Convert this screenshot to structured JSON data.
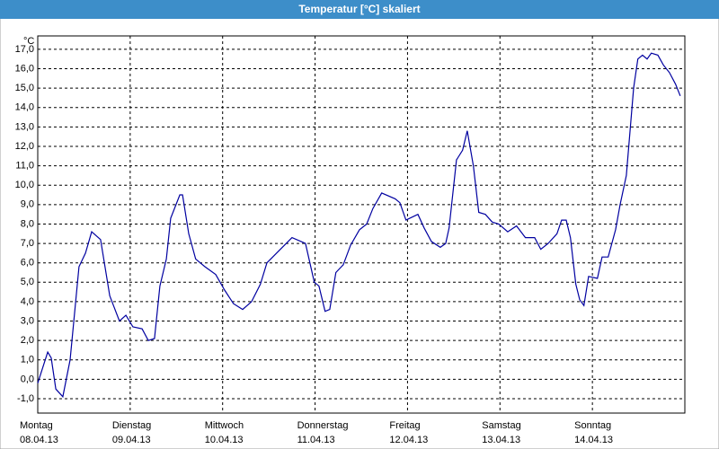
{
  "chart_data": {
    "type": "line",
    "title": "Temperatur [°C] skaliert",
    "ylabel": "°C",
    "x": [
      0,
      2.6,
      3.5,
      4.7,
      6.5,
      8.4,
      10.7,
      12.4,
      14.0,
      16.3,
      18.7,
      21.2,
      22.9,
      24.7,
      27.1,
      28.7,
      30.3,
      31.7,
      33.4,
      34.5,
      36.9,
      37.6,
      39.2,
      41.0,
      43.4,
      46.2,
      48.5,
      50.8,
      53.2,
      55.5,
      57.8,
      59.5,
      62.5,
      66.0,
      69.5,
      71.8,
      73.0,
      74.6,
      75.8,
      77.4,
      79.3,
      81.2,
      83.5,
      85.4,
      87.0,
      89.3,
      92.8,
      94.0,
      95.6,
      98.7,
      100.3,
      102.2,
      104.5,
      105.9,
      106.8,
      108.7,
      110.3,
      111.5,
      113.1,
      114.5,
      116.2,
      118.0,
      119.7,
      122.0,
      124.3,
      126.6,
      129.0,
      130.6,
      132.5,
      134.8,
      136.0,
      137.2,
      138.3,
      139.7,
      140.7,
      141.8,
      143.0,
      145.3,
      146.5,
      148.1,
      150.0,
      151.2,
      152.8,
      154.7,
      155.8,
      157.0,
      158.2,
      159.3,
      161.0,
      162.4,
      164.0,
      165.6,
      166.8
    ],
    "series": [
      {
        "name": "Temperatur",
        "color": "#0000a0",
        "values": [
          -0.2,
          1.4,
          1.1,
          -0.5,
          -0.9,
          1.0,
          5.8,
          6.5,
          7.6,
          7.2,
          4.3,
          3.0,
          3.3,
          2.7,
          2.6,
          2.0,
          2.1,
          4.8,
          6.2,
          8.3,
          9.5,
          9.5,
          7.5,
          6.2,
          5.8,
          5.4,
          4.6,
          3.9,
          3.6,
          4.0,
          4.9,
          6.0,
          6.6,
          7.3,
          7.0,
          5.0,
          4.8,
          3.5,
          3.6,
          5.5,
          5.9,
          6.9,
          7.7,
          8.0,
          8.8,
          9.6,
          9.3,
          9.1,
          8.2,
          8.5,
          7.8,
          7.1,
          6.8,
          7.0,
          7.8,
          11.3,
          11.8,
          12.8,
          11.0,
          8.6,
          8.5,
          8.1,
          8.0,
          7.6,
          7.9,
          7.3,
          7.3,
          6.7,
          7.0,
          7.5,
          8.2,
          8.2,
          7.3,
          4.9,
          4.1,
          3.8,
          5.3,
          5.2,
          6.3,
          6.3,
          7.7,
          9.0,
          10.5,
          15.0,
          16.5,
          16.7,
          16.5,
          16.8,
          16.7,
          16.2,
          15.8,
          15.2,
          14.6
        ]
      }
    ],
    "xlim": [
      0,
      168
    ],
    "xticks": [
      {
        "value": 0,
        "label": "Montag"
      },
      {
        "value": 24,
        "label": "Dienstag"
      },
      {
        "value": 48,
        "label": "Mittwoch"
      },
      {
        "value": 72,
        "label": "Donnerstag"
      },
      {
        "value": 96,
        "label": "Freitag"
      },
      {
        "value": 120,
        "label": "Samstag"
      },
      {
        "value": 144,
        "label": "Sonntag"
      }
    ],
    "xtick_dates": [
      "08.04.13",
      "09.04.13",
      "10.04.13",
      "11.04.13",
      "12.04.13",
      "13.04.13",
      "14.04.13"
    ],
    "ylim": [
      -1.74,
      17.69
    ],
    "yticks": [
      {
        "value": -1,
        "label": "-1,0"
      },
      {
        "value": 0,
        "label": "0,0"
      },
      {
        "value": 1,
        "label": "1,0"
      },
      {
        "value": 2,
        "label": "2,0"
      },
      {
        "value": 3,
        "label": "3,0"
      },
      {
        "value": 4,
        "label": "4,0"
      },
      {
        "value": 5,
        "label": "5,0"
      },
      {
        "value": 6,
        "label": "6,0"
      },
      {
        "value": 7,
        "label": "7,0"
      },
      {
        "value": 8,
        "label": "8,0"
      },
      {
        "value": 9,
        "label": "9,0"
      },
      {
        "value": 10,
        "label": "10,0"
      },
      {
        "value": 11,
        "label": "11,0"
      },
      {
        "value": 12,
        "label": "12,0"
      },
      {
        "value": 13,
        "label": "13,0"
      },
      {
        "value": 14,
        "label": "14,0"
      },
      {
        "value": 15,
        "label": "15,0"
      },
      {
        "value": 16,
        "label": "16,0"
      },
      {
        "value": 17,
        "label": "17,0"
      }
    ],
    "grid": true
  }
}
